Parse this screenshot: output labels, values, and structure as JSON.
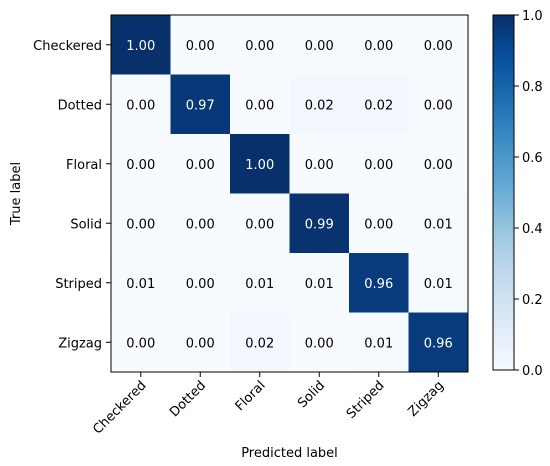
{
  "chart_data": {
    "type": "heatmap",
    "title": "",
    "xlabel": "Predicted label",
    "ylabel": "True label",
    "x_categories": [
      "Checkered",
      "Dotted",
      "Floral",
      "Solid",
      "Striped",
      "Zigzag"
    ],
    "y_categories": [
      "Checkered",
      "Dotted",
      "Floral",
      "Solid",
      "Striped",
      "Zigzag"
    ],
    "values": [
      [
        1.0,
        0.0,
        0.0,
        0.0,
        0.0,
        0.0
      ],
      [
        0.0,
        0.97,
        0.0,
        0.02,
        0.02,
        0.0
      ],
      [
        0.0,
        0.0,
        1.0,
        0.0,
        0.0,
        0.0
      ],
      [
        0.0,
        0.0,
        0.0,
        0.99,
        0.0,
        0.01
      ],
      [
        0.01,
        0.0,
        0.01,
        0.01,
        0.96,
        0.01
      ],
      [
        0.0,
        0.0,
        0.02,
        0.0,
        0.01,
        0.96
      ]
    ],
    "value_range": [
      0.0,
      1.0
    ],
    "colormap": "Blues",
    "colorbar_ticks": [
      "0.0",
      "0.2",
      "0.4",
      "0.6",
      "0.8",
      "1.0"
    ],
    "grid": false,
    "legend": "colorbar-right"
  }
}
